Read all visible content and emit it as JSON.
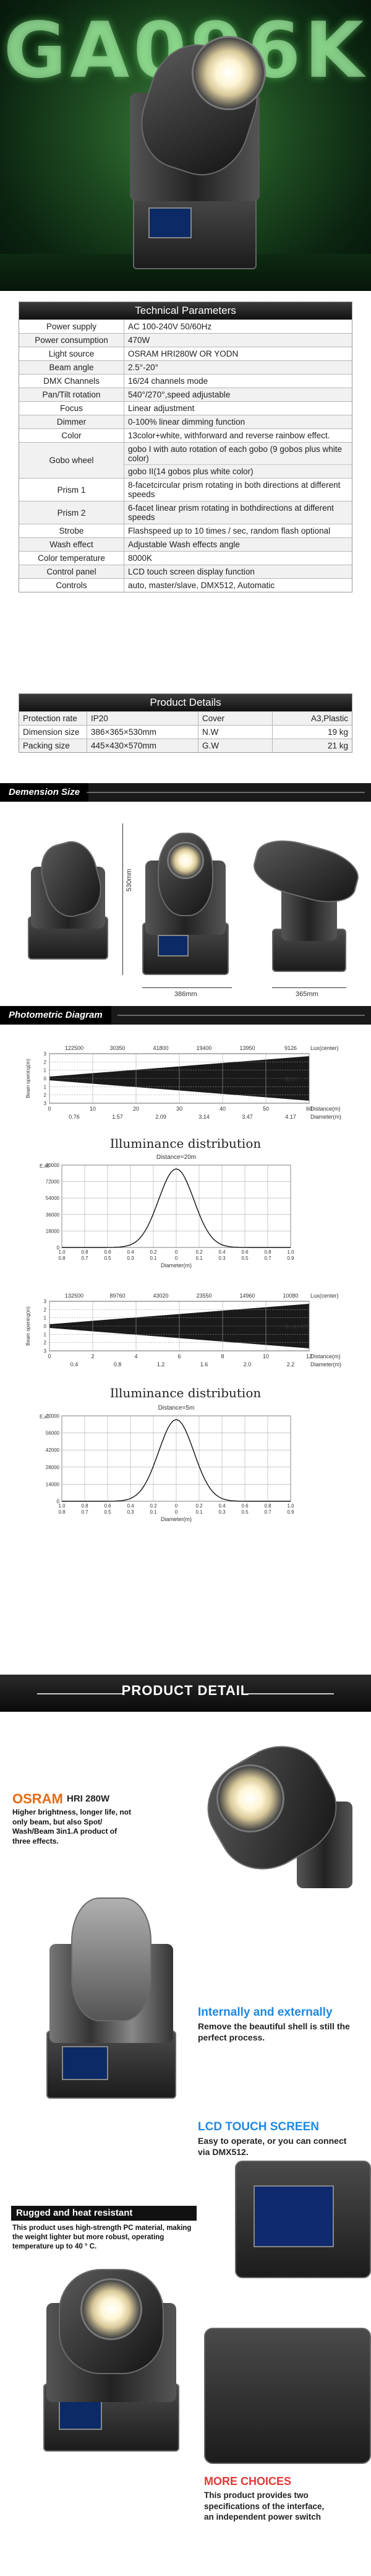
{
  "hero": {
    "title": "GA096K"
  },
  "tech_params": {
    "heading": "Technical Parameters",
    "rows": [
      {
        "key": "Power supply",
        "value": "AC 100-240V 50/60Hz"
      },
      {
        "key": "Power consumption",
        "value": "470W"
      },
      {
        "key": "Light source",
        "value": "OSRAM HRI280W OR YODN"
      },
      {
        "key": "Beam angle",
        "value": "2.5°-20°"
      },
      {
        "key": "DMX Channels",
        "value": "16/24 channels mode"
      },
      {
        "key": "Pan/Tilt rotation",
        "value": "540°/270°,speed adjustable"
      },
      {
        "key": "Focus",
        "value": "Linear adjustment"
      },
      {
        "key": "Dimmer",
        "value": "0-100% linear dimming function"
      },
      {
        "key": "Color",
        "value": "13color+white,  withforward and reverse rainbow effect."
      },
      {
        "key": "Gobo wheel",
        "value": "gobo I with auto rotation of each gobo (9 gobos plus white color)",
        "value2": "gobo II(14 gobos plus white color)"
      },
      {
        "key": "Prism 1",
        "value": "8-facetcircular prism rotating in both directions at different speeds"
      },
      {
        "key": "Prism 2",
        "value": "6-facet linear prism rotating in bothdirections at different speeds"
      },
      {
        "key": "Strobe",
        "value": "Flashspeed up to 10 times / sec, random flash optional"
      },
      {
        "key": "Wash effect",
        "value": "Adjustable Wash effects angle"
      },
      {
        "key": "Color temperature",
        "value": "8000K"
      },
      {
        "key": "Control panel",
        "value": "LCD touch screen display function"
      },
      {
        "key": "Controls",
        "value": "auto,  master/slave,  DMX512,  Automatic"
      }
    ]
  },
  "product_details": {
    "heading": "Product Details",
    "rows": [
      [
        "Protection rate",
        "IP20",
        "Cover",
        "A3,Plastic"
      ],
      [
        "Dimension size",
        "386×365×530mm",
        "N.W",
        "19 kg"
      ],
      [
        "Packing size",
        "445×430×570mm",
        "G.W",
        "21 kg"
      ]
    ]
  },
  "dimension": {
    "banner": "Demension Size",
    "height": "530mm",
    "width": "386mm",
    "depth": "365mm"
  },
  "photometric": {
    "banner": "Photometric Diagram",
    "beam1": {
      "lux_values": [
        "122500",
        "30350",
        "41800",
        "19400",
        "13950",
        "9126"
      ],
      "lux_label": "Lux(center)",
      "diam_values": [
        "0.76",
        "1.57",
        "2.09",
        "3.14",
        "3.47",
        "4.17"
      ],
      "dist_values": [
        "0",
        "10",
        "20",
        "30",
        "40",
        "50",
        "60"
      ],
      "dist_label": "Distance(m)",
      "diam_label": "Diameter(m)",
      "beam_label": "8min",
      "y_label": "Beam opening(m)",
      "y_ticks": [
        "3",
        "2",
        "1",
        "0",
        "1",
        "2",
        "3"
      ]
    },
    "dist1": {
      "title": "Illuminance distribution",
      "subtitle": "Distance=20m",
      "y_label": "E,x0",
      "y_ticks": [
        "90000",
        "72000",
        "54000",
        "36000",
        "18000",
        "0"
      ],
      "x_ticks": [
        "1.0",
        "0.8",
        "0.6",
        "0.4",
        "0.2",
        "0",
        "0.2",
        "0.4",
        "0.6",
        "0.8",
        "1.0"
      ],
      "x_ticks2": [
        "0.8",
        "0.7",
        "0.5",
        "0.3",
        "0.1",
        "0",
        "0.1",
        "0.3",
        "0.5",
        "0.7",
        "0.9"
      ],
      "x_label": "Diameter(m)"
    },
    "beam2": {
      "lux_values": [
        "132500",
        "89760",
        "43020",
        "23550",
        "14960",
        "10080"
      ],
      "lux_label": "Lux(center)",
      "diam_values": [
        "0.4",
        "0.8",
        "1.2",
        "1.6",
        "2.0",
        "2.2"
      ],
      "dist_values": [
        "0",
        "2",
        "4",
        "6",
        "8",
        "10",
        "12"
      ],
      "dist_label": "Distance(m)",
      "diam_label": "Diameter(m)",
      "beam_label": "8ma≈45°",
      "y_label": "Beam opening(m)",
      "y_ticks": [
        "3",
        "2",
        "1",
        "0",
        "1",
        "2",
        "3"
      ]
    },
    "dist2": {
      "title": "Illuminance distribution",
      "subtitle": "Distance=5m",
      "y_label": "E,x0",
      "y_ticks": [
        "70000",
        "56000",
        "42000",
        "28000",
        "14000",
        "0"
      ],
      "x_ticks": [
        "1.0",
        "0.8",
        "0.6",
        "0.4",
        "0.2",
        "0",
        "0.2",
        "0.4",
        "0.6",
        "0.8",
        "1.0"
      ],
      "x_ticks2": [
        "0.8",
        "0.7",
        "0.5",
        "0.3",
        "0.1",
        "0",
        "0.1",
        "0.3",
        "0.5",
        "0.7",
        "0.9"
      ],
      "x_label": "Diameter(m)"
    }
  },
  "detail": {
    "banner": "PRODUCT DETAIL",
    "osram_brand": "OSRAM",
    "osram_model": "HRI 280W",
    "osram_text": "Higher brightness, longer life, not only beam, but also Spot/ Wash/Beam 3in1.A product of three effects.",
    "internal_title": "Internally and externally",
    "internal_text": "Remove the beautiful shell is still the perfect process.",
    "lcd_title": "LCD TOUCH SCREEN",
    "lcd_text": "Easy to operate, or you can connect via DMX512.",
    "rugged_title": "Rugged and heat resistant",
    "rugged_text": "This product uses high-strength PC material, making the weight lighter but more robust, operating temperature up to 40 ° C.",
    "more_title": "MORE CHOICES",
    "more_text": "This product provides two specifications of the interface, an independent power switch"
  },
  "colors": {
    "accent_blue": "#1e88e5",
    "accent_orange": "#e86a12",
    "accent_red": "#e53935",
    "hero_green": "#2fbf4a"
  }
}
